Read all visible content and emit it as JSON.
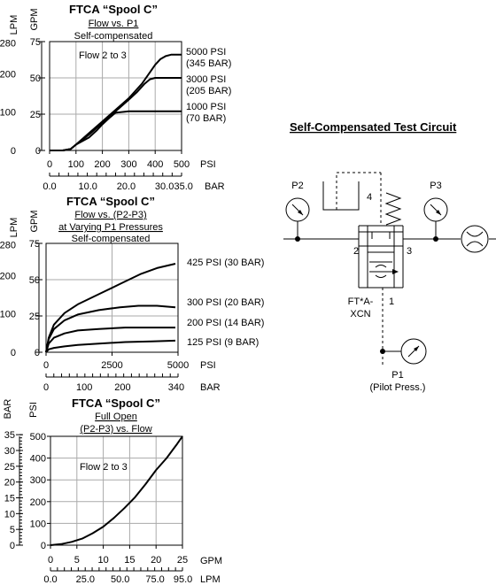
{
  "chart_data": [
    {
      "type": "line",
      "title": "FTCA “Spool C”",
      "subtitle_lines": [
        "Flow vs. P1",
        "Self-compensated"
      ],
      "xlabel_primary": "PSI",
      "xlabel_secondary": "BAR",
      "ylabel_lpm": "LPM",
      "ylabel_gpm": "GPM",
      "xlim": [
        0,
        500
      ],
      "ylim_gpm": [
        0,
        75
      ],
      "x_ticks_psi": [
        "0",
        "100",
        "200",
        "300",
        "400",
        "500"
      ],
      "x_ticks_bar": [
        "0.0",
        "10.0",
        "20.0",
        "30.0",
        "35.0"
      ],
      "y_ticks_lpm": [
        "0",
        "100",
        "200",
        "280"
      ],
      "y_ticks_gpm": [
        "0",
        "25",
        "50",
        "75"
      ],
      "annotation": "Flow 2 to 3",
      "series": [
        {
          "name": "5000 PSI\n(345 BAR)",
          "label_lines": [
            "5000 PSI",
            "(345 BAR)"
          ],
          "x": [
            0,
            50,
            80,
            100,
            150,
            200,
            250,
            300,
            350,
            400,
            420,
            440,
            460,
            500
          ],
          "y": [
            0,
            0,
            1,
            4,
            12,
            20,
            28,
            36,
            46,
            59,
            63,
            65,
            66,
            66
          ]
        },
        {
          "name": "3000 PSI\n(205 BAR)",
          "label_lines": [
            "3000 PSI",
            "(205 BAR)"
          ],
          "x": [
            0,
            50,
            80,
            100,
            150,
            200,
            250,
            300,
            330,
            360,
            380,
            400,
            450,
            500
          ],
          "y": [
            0,
            0,
            1,
            4,
            11,
            19,
            27,
            35,
            40,
            46,
            49,
            50,
            50,
            50
          ]
        },
        {
          "name": "1000 PSI\n(70 BAR)",
          "label_lines": [
            "1000 PSI",
            "(70 BAR)"
          ],
          "x": [
            0,
            50,
            80,
            100,
            150,
            180,
            200,
            230,
            250,
            300,
            400,
            500
          ],
          "y": [
            0,
            0,
            1,
            4,
            9,
            14,
            18,
            23,
            26,
            27,
            27,
            27
          ]
        }
      ]
    },
    {
      "type": "line",
      "title": "FTCA “Spool C”",
      "subtitle_lines": [
        "Flow vs. (P2-P3)",
        "at Varying P1 Pressures",
        "Self-compensated"
      ],
      "xlabel_primary": "PSI",
      "xlabel_secondary": "BAR",
      "ylabel_lpm": "LPM",
      "ylabel_gpm": "GPM",
      "xlim": [
        0,
        5000
      ],
      "ylim_gpm": [
        0,
        75
      ],
      "x_ticks_psi": [
        "0",
        "2500",
        "5000"
      ],
      "x_ticks_bar": [
        "0",
        "100",
        "200",
        "340"
      ],
      "y_ticks_lpm": [
        "0",
        "100",
        "200",
        "280"
      ],
      "y_ticks_gpm": [
        "0",
        "25",
        "50",
        "75"
      ],
      "series": [
        {
          "name": "425 PSI (30 BAR)",
          "label_lines": [
            "425 PSI (30 BAR)"
          ],
          "x": [
            0,
            100,
            300,
            700,
            1200,
            2000,
            2800,
            3600,
            4200,
            4900
          ],
          "y": [
            0,
            10,
            19,
            27,
            33,
            40,
            47,
            54,
            58,
            61
          ]
        },
        {
          "name": "300 PSI (20 BAR)",
          "label_lines": [
            "300 PSI (20 BAR)"
          ],
          "x": [
            0,
            100,
            300,
            700,
            1200,
            2000,
            2800,
            3500,
            4200,
            4900
          ],
          "y": [
            0,
            9,
            16,
            22,
            26,
            29,
            31,
            32,
            32,
            31
          ]
        },
        {
          "name": "200 PSI (14 BAR)",
          "label_lines": [
            "200 PSI (14 BAR)"
          ],
          "x": [
            0,
            100,
            300,
            700,
            1200,
            2000,
            3000,
            4000,
            4900
          ],
          "y": [
            0,
            6,
            10,
            13,
            15,
            16,
            17,
            17,
            17
          ]
        },
        {
          "name": "125 PSI (9 BAR)",
          "label_lines": [
            "125 PSI (9 BAR)"
          ],
          "x": [
            0,
            100,
            300,
            700,
            1200,
            2000,
            3000,
            4000,
            4900
          ],
          "y": [
            0,
            2,
            3,
            4,
            5,
            6,
            7,
            7.5,
            8
          ]
        }
      ]
    },
    {
      "type": "line",
      "title": "FTCA “Spool C”",
      "subtitle_lines": [
        "Full Open",
        "(P2-P3) vs. Flow"
      ],
      "xlabel_primary": "GPM",
      "xlabel_secondary": "LPM",
      "ylabel_bar": "BAR",
      "ylabel_psi": "PSI",
      "xlim": [
        0,
        25
      ],
      "ylim_psi": [
        0,
        500
      ],
      "x_ticks_gpm": [
        "0",
        "5",
        "10",
        "15",
        "20",
        "25"
      ],
      "x_ticks_lpm": [
        "0.0",
        "25.0",
        "50.0",
        "75.0",
        "95.0"
      ],
      "y_ticks_psi": [
        "0",
        "100",
        "200",
        "300",
        "400",
        "500"
      ],
      "y_ticks_bar": [
        "0",
        "5",
        "10",
        "15",
        "20",
        "25",
        "30",
        "35"
      ],
      "annotation": "Flow 2 to 3",
      "series": [
        {
          "name": "",
          "label_lines": [],
          "x": [
            0,
            2,
            4,
            6,
            8,
            10,
            12,
            14,
            16,
            18,
            20,
            22,
            24,
            25
          ],
          "y": [
            0,
            5,
            15,
            30,
            55,
            85,
            125,
            170,
            220,
            280,
            345,
            400,
            465,
            500
          ]
        }
      ]
    }
  ],
  "circuit": {
    "title": "Self-Compensated Test Circuit",
    "gauge_p2": "P2",
    "gauge_p3": "P3",
    "port_4": "4",
    "port_2": "2",
    "port_3": "3",
    "port_1": "1",
    "valve_lines": [
      "FT*A-",
      "XCN"
    ],
    "p1_lines": [
      "P1",
      "(Pilot Press.)"
    ]
  }
}
